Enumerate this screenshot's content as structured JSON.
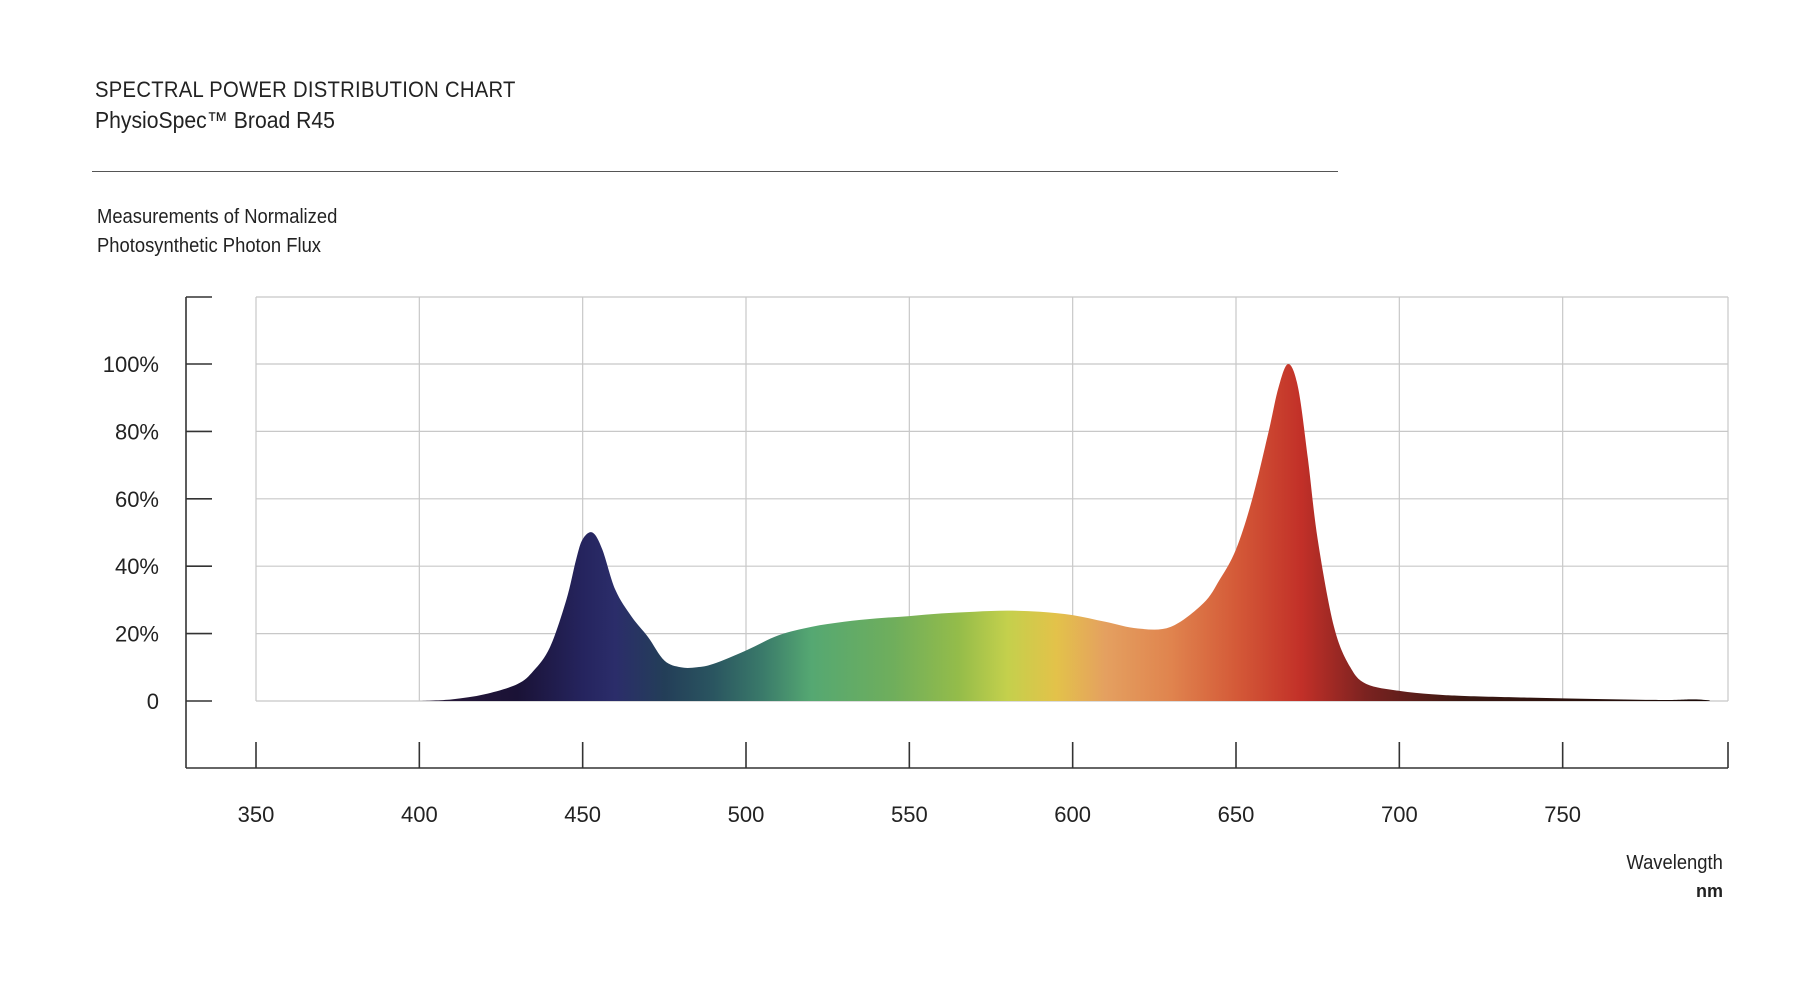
{
  "header": {
    "title": "SPECTRAL POWER DISTRIBUTION CHART",
    "subtitle": "PhysioSpec™ Broad R45",
    "measure_line1": "Measurements of Normalized",
    "measure_line2": "Photosynthetic Photon Flux"
  },
  "chart_data": {
    "type": "area",
    "title": "SPECTRAL POWER DISTRIBUTION CHART",
    "subtitle": "PhysioSpec™ Broad R45",
    "ylabel": "Measurements of Normalized Photosynthetic Photon Flux",
    "xlabel": "Wavelength",
    "xunit": "nm",
    "xlim": [
      350,
      800
    ],
    "ylim": [
      0,
      100
    ],
    "x_ticks": [
      350,
      400,
      450,
      500,
      550,
      600,
      650,
      700,
      750
    ],
    "y_ticks": [
      {
        "value": 0,
        "label": "0"
      },
      {
        "value": 20,
        "label": "20%"
      },
      {
        "value": 40,
        "label": "40%"
      },
      {
        "value": 60,
        "label": "60%"
      },
      {
        "value": 80,
        "label": "80%"
      },
      {
        "value": 100,
        "label": "100%"
      }
    ],
    "grid": true,
    "series": [
      {
        "x": [
          400,
          410,
          420,
          430,
          435,
          440,
          445,
          448,
          450,
          453,
          456,
          460,
          465,
          470,
          475,
          480,
          485,
          490,
          500,
          510,
          520,
          530,
          540,
          550,
          560,
          570,
          580,
          590,
          600,
          610,
          620,
          630,
          640,
          645,
          650,
          655,
          660,
          663,
          666,
          669,
          672,
          675,
          680,
          685,
          690,
          700,
          710,
          720,
          740,
          760,
          780,
          790,
          795
        ],
        "y": [
          0,
          0.5,
          2,
          5,
          9,
          16,
          30,
          42,
          48,
          50,
          45,
          33,
          25,
          19,
          12,
          10,
          10,
          11,
          15,
          19.5,
          22,
          23.5,
          24.5,
          25.2,
          26,
          26.5,
          26.8,
          26.5,
          25.5,
          23.5,
          21.5,
          22,
          29,
          36,
          45,
          60,
          80,
          93,
          100,
          93,
          72,
          48,
          22,
          10,
          5,
          3,
          2,
          1.5,
          1,
          0.6,
          0.3,
          0.5,
          0.2
        ],
        "colors": [
          {
            "nm": 400,
            "color": "#2a1a3a"
          },
          {
            "nm": 430,
            "color": "#1a1236"
          },
          {
            "nm": 450,
            "color": "#25245e"
          },
          {
            "nm": 460,
            "color": "#2b2d6a"
          },
          {
            "nm": 475,
            "color": "#233e58"
          },
          {
            "nm": 490,
            "color": "#2a5560"
          },
          {
            "nm": 505,
            "color": "#3a7a6a"
          },
          {
            "nm": 520,
            "color": "#55a872"
          },
          {
            "nm": 545,
            "color": "#6fae5c"
          },
          {
            "nm": 565,
            "color": "#94bc4a"
          },
          {
            "nm": 580,
            "color": "#c4d04c"
          },
          {
            "nm": 595,
            "color": "#e3c24a"
          },
          {
            "nm": 610,
            "color": "#e4a060"
          },
          {
            "nm": 630,
            "color": "#e0844e"
          },
          {
            "nm": 650,
            "color": "#d45a38"
          },
          {
            "nm": 670,
            "color": "#c23028"
          },
          {
            "nm": 690,
            "color": "#7a2220"
          },
          {
            "nm": 720,
            "color": "#3a1812"
          },
          {
            "nm": 795,
            "color": "#1a0a08"
          }
        ]
      }
    ]
  }
}
